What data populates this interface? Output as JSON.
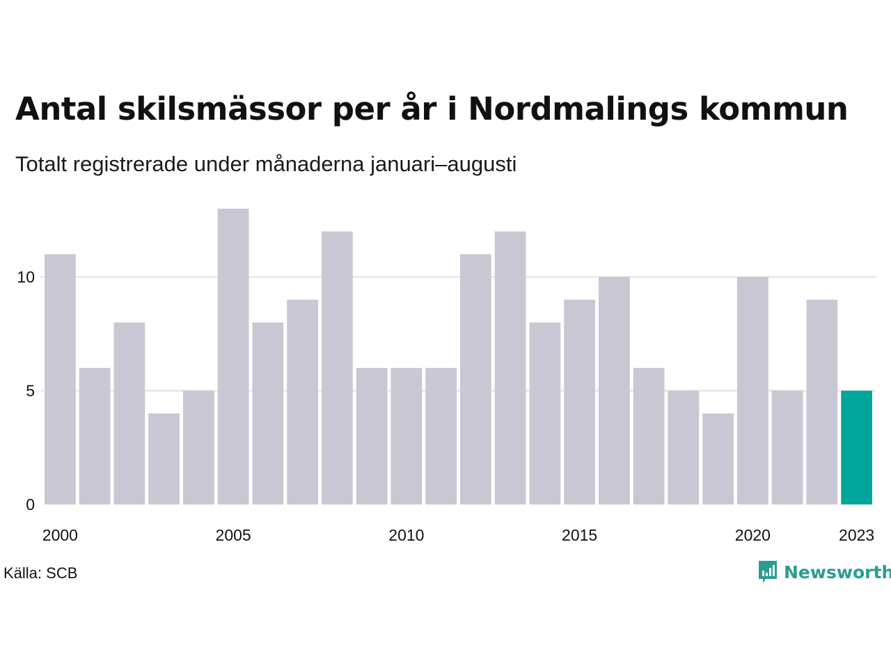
{
  "header": {
    "title": "Antal skilsmässor per år i Nordmalings kommun",
    "subtitle": "Totalt registrerade under månaderna januari–augusti"
  },
  "footer": {
    "source": "Källa: SCB",
    "brand": "Newsworthy",
    "brand_icon": "bar-chart-speech-bubble-icon"
  },
  "colors": {
    "bar": "#c8c7d3",
    "highlight": "#00a699",
    "grid": "#e6e6e9",
    "brand": "#2a9d8f"
  },
  "chart_data": {
    "type": "bar",
    "title": "Antal skilsmässor per år i Nordmalings kommun",
    "subtitle": "Totalt registrerade under månaderna januari–augusti",
    "categories": [
      2000,
      2001,
      2002,
      2003,
      2004,
      2005,
      2006,
      2007,
      2008,
      2009,
      2010,
      2011,
      2012,
      2013,
      2014,
      2015,
      2016,
      2017,
      2018,
      2019,
      2020,
      2021,
      2022,
      2023
    ],
    "values": [
      11,
      6,
      8,
      4,
      5,
      13,
      8,
      9,
      12,
      6,
      6,
      6,
      11,
      12,
      8,
      9,
      10,
      6,
      5,
      4,
      10,
      5,
      9,
      5
    ],
    "highlight_category": 2023,
    "x_tick_labels": [
      "2000",
      "2005",
      "2010",
      "2015",
      "2020",
      "2023"
    ],
    "y_ticks": [
      0,
      5,
      10
    ],
    "ylim": [
      0,
      13
    ],
    "xlabel": "",
    "ylabel": "",
    "grid": true
  }
}
